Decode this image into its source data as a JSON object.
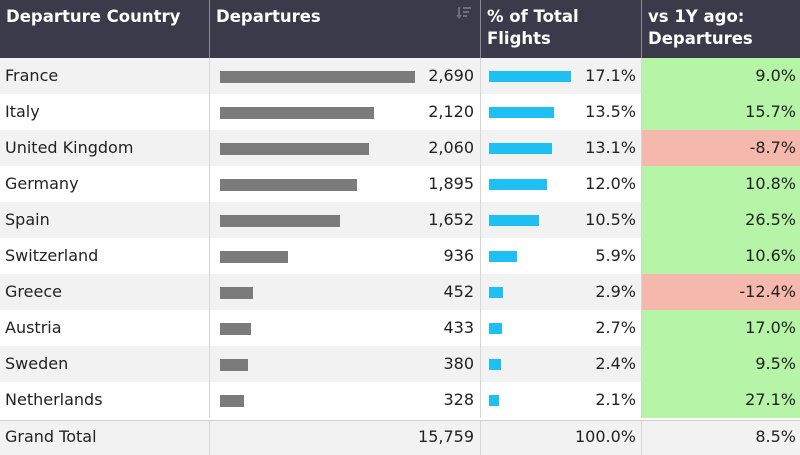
{
  "colors": {
    "header_bg": "#3b3a4a",
    "departures_bar": "#7b7b7b",
    "share_bar": "#1ec0f3",
    "positive_bg": "#b6f5a8",
    "negative_bg": "#f5b8ad"
  },
  "header": {
    "country": "Departure Country",
    "departures": "Departures",
    "share": "% of Total Flights",
    "vs": "vs 1Y ago: Departures",
    "sort_icon": "sort-descending-icon"
  },
  "rows": [
    {
      "country": "France",
      "departures": "2,690",
      "departures_value": 2690,
      "share": "17.1%",
      "share_value": 17.1,
      "vs": "9.0%",
      "vs_value": 9.0
    },
    {
      "country": "Italy",
      "departures": "2,120",
      "departures_value": 2120,
      "share": "13.5%",
      "share_value": 13.5,
      "vs": "15.7%",
      "vs_value": 15.7
    },
    {
      "country": "United Kingdom",
      "departures": "2,060",
      "departures_value": 2060,
      "share": "13.1%",
      "share_value": 13.1,
      "vs": "-8.7%",
      "vs_value": -8.7
    },
    {
      "country": "Germany",
      "departures": "1,895",
      "departures_value": 1895,
      "share": "12.0%",
      "share_value": 12.0,
      "vs": "10.8%",
      "vs_value": 10.8
    },
    {
      "country": "Spain",
      "departures": "1,652",
      "departures_value": 1652,
      "share": "10.5%",
      "share_value": 10.5,
      "vs": "26.5%",
      "vs_value": 26.5
    },
    {
      "country": "Switzerland",
      "departures": "936",
      "departures_value": 936,
      "share": "5.9%",
      "share_value": 5.9,
      "vs": "10.6%",
      "vs_value": 10.6
    },
    {
      "country": "Greece",
      "departures": "452",
      "departures_value": 452,
      "share": "2.9%",
      "share_value": 2.9,
      "vs": "-12.4%",
      "vs_value": -12.4
    },
    {
      "country": "Austria",
      "departures": "433",
      "departures_value": 433,
      "share": "2.7%",
      "share_value": 2.7,
      "vs": "17.0%",
      "vs_value": 17.0
    },
    {
      "country": "Sweden",
      "departures": "380",
      "departures_value": 380,
      "share": "2.4%",
      "share_value": 2.4,
      "vs": "9.5%",
      "vs_value": 9.5
    },
    {
      "country": "Netherlands",
      "departures": "328",
      "departures_value": 328,
      "share": "2.1%",
      "share_value": 2.1,
      "vs": "27.1%",
      "vs_value": 27.1
    }
  ],
  "total": {
    "label": "Grand Total",
    "departures": "15,759",
    "share": "100.0%",
    "vs": "8.5%"
  }
}
